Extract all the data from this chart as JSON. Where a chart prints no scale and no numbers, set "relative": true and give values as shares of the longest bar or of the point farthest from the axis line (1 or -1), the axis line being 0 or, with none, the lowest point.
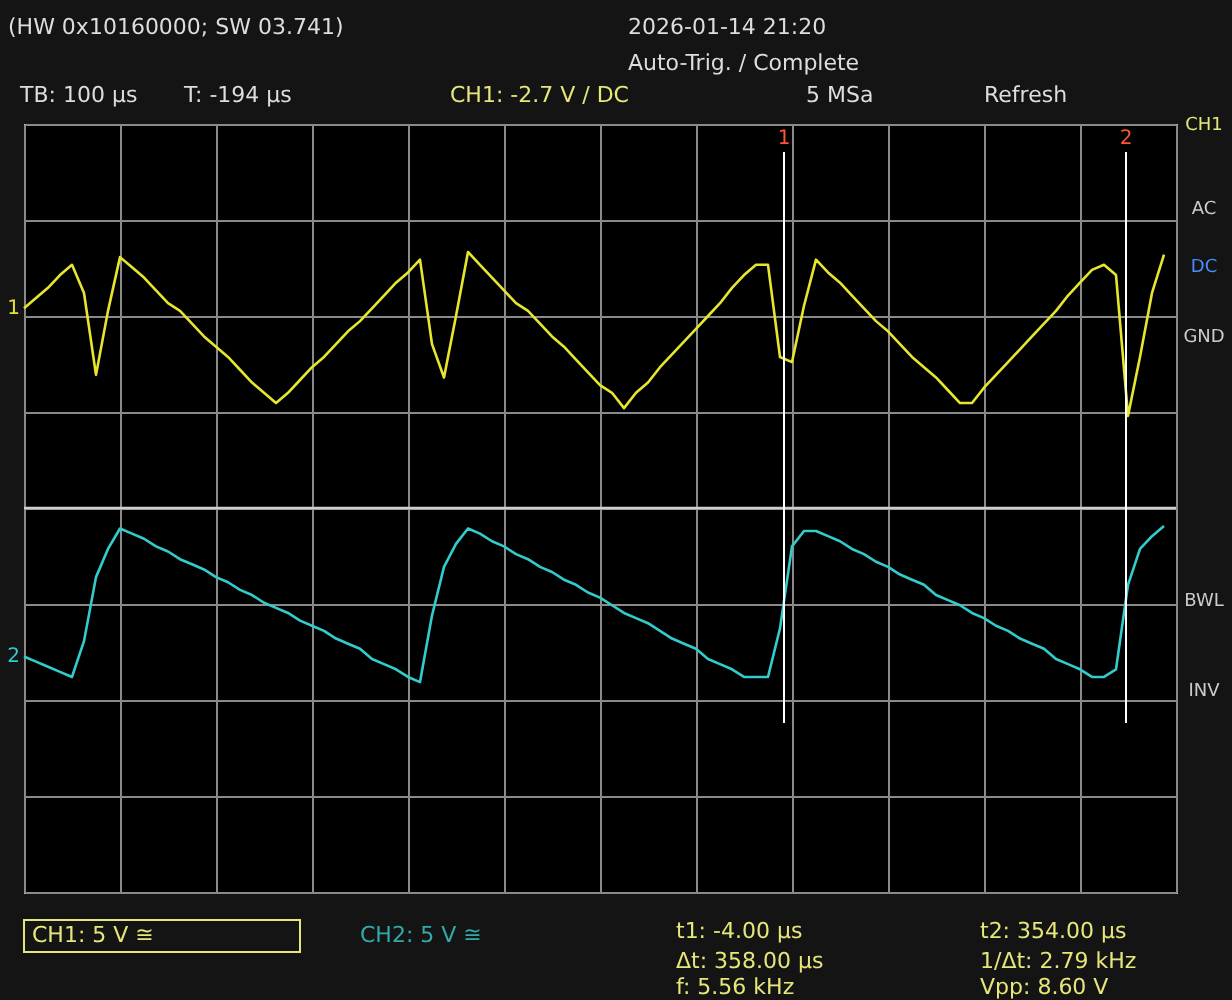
{
  "chart_data": {
    "type": "line",
    "title": "(HW 0x10160000; SW 03.741)",
    "relative": true,
    "grid": true,
    "marker": "none",
    "line_style": "solid",
    "categories": [
      null,
      null,
      null,
      null,
      null,
      null,
      null,
      null,
      null,
      null,
      null,
      null,
      null,
      null,
      null,
      null,
      null,
      null,
      null,
      null,
      null,
      null,
      null,
      null,
      null,
      null,
      null,
      null,
      null,
      null,
      null,
      null,
      null,
      null,
      null,
      null,
      null,
      null,
      null,
      null,
      null,
      null,
      null,
      null,
      null,
      null,
      null,
      null,
      null,
      null,
      null,
      null,
      null,
      null,
      null,
      null,
      null,
      null,
      null,
      null,
      null,
      null,
      null,
      null,
      null,
      null,
      null,
      null,
      null,
      null,
      null,
      null,
      null,
      null,
      null,
      null,
      null,
      null,
      null,
      null,
      null,
      null,
      null,
      null,
      null,
      null,
      null,
      null,
      null,
      null,
      null,
      null,
      null,
      null,
      null,
      null,
      null
    ],
    "series": [
      {
        "name": "1",
        "color": "#e6e62e",
        "values": [
          0.78,
          0.82,
          0.86,
          0.91,
          0.95,
          0.84,
          0.52,
          0.77,
          0.98,
          0.94,
          0.9,
          0.85,
          0.8,
          0.77,
          0.72,
          0.67,
          0.63,
          0.59,
          0.54,
          0.49,
          0.45,
          0.41,
          0.45,
          0.5,
          0.55,
          0.59,
          0.64,
          0.69,
          0.73,
          0.78,
          0.83,
          0.88,
          0.92,
          0.97,
          0.64,
          0.51,
          0.75,
          1,
          0.95,
          0.9,
          0.85,
          0.8,
          0.77,
          0.72,
          0.67,
          0.63,
          0.58,
          0.53,
          0.48,
          0.45,
          0.39,
          0.45,
          0.49,
          0.55,
          0.6,
          0.65,
          0.7,
          0.75,
          0.8,
          0.86,
          0.91,
          0.95,
          0.95,
          0.59,
          0.57,
          0.79,
          0.97,
          0.92,
          0.88,
          0.83,
          0.78,
          0.73,
          0.69,
          0.64,
          0.59,
          0.55,
          0.51,
          0.46,
          0.41,
          0.41,
          0.47,
          0.52,
          0.57,
          0.62,
          0.67,
          0.72,
          0.77,
          0.83,
          0.88,
          0.93,
          0.95,
          0.91,
          0.36,
          0.59,
          0.84,
          0.99,
          null
        ]
      },
      {
        "name": "2",
        "color": "#33cccc",
        "values": [
          -0.58,
          -0.6,
          -0.62,
          -0.64,
          -0.66,
          -0.52,
          -0.27,
          -0.16,
          -0.08,
          -0.1,
          -0.12,
          -0.15,
          -0.17,
          -0.2,
          -0.22,
          -0.24,
          -0.27,
          -0.29,
          -0.32,
          -0.34,
          -0.37,
          -0.39,
          -0.41,
          -0.44,
          -0.46,
          -0.48,
          -0.51,
          -0.53,
          -0.55,
          -0.59,
          -0.61,
          -0.63,
          -0.66,
          -0.68,
          -0.42,
          -0.23,
          -0.14,
          -0.08,
          -0.1,
          -0.13,
          -0.15,
          -0.18,
          -0.2,
          -0.23,
          -0.25,
          -0.28,
          -0.3,
          -0.33,
          -0.35,
          -0.38,
          -0.41,
          -0.43,
          -0.45,
          -0.48,
          -0.51,
          -0.53,
          -0.55,
          -0.59,
          -0.61,
          -0.63,
          -0.66,
          -0.66,
          -0.66,
          -0.47,
          -0.15,
          -0.09,
          -0.09,
          -0.11,
          -0.13,
          -0.16,
          -0.18,
          -0.21,
          -0.23,
          -0.26,
          -0.28,
          -0.3,
          -0.34,
          -0.36,
          -0.38,
          -0.41,
          -0.43,
          -0.46,
          -0.48,
          -0.51,
          -0.53,
          -0.55,
          -0.59,
          -0.61,
          -0.63,
          -0.66,
          -0.66,
          -0.63,
          -0.3,
          -0.16,
          -0.11,
          -0.07,
          null
        ]
      }
    ],
    "annotations": [
      "1",
      "2",
      "2026-01-14 21:20",
      "Auto-Trig. / Complete",
      "TB: 100 µs",
      "T: -194 µs",
      "CH1: -2.7 V / DC",
      "5 MSa",
      "Refresh",
      "CH1",
      "AC",
      "DC",
      "GND",
      "BWL",
      "INV",
      "CH1: 5 V ≅",
      "CH2: 5 V ≅",
      "t1: -4.00 µs",
      "t2: 354.00 µs",
      "Δt: 358.00 µs",
      "1/Δt: 2.79 kHz",
      "f: 5.56 kHz",
      "Vpp: 8.60 V"
    ]
  }
}
